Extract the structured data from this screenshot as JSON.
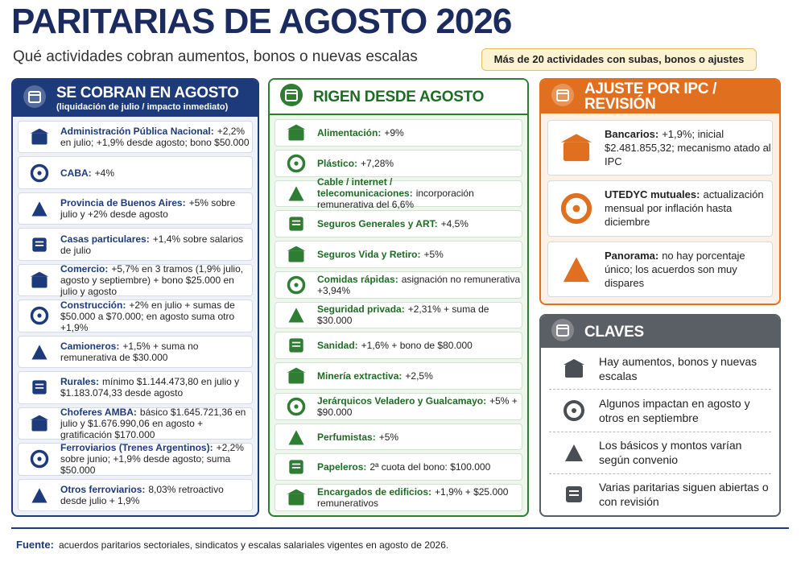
{
  "header": {
    "title": "PARITARIAS DE AGOSTO 2026",
    "subtitle": "Qué actividades cobran aumentos, bonos o nuevas escalas",
    "badge": "Más de 20 actividades con subas, bonos o ajustes"
  },
  "columns": [
    {
      "title": "SE COBRAN EN AGOSTO",
      "subtitle": "(liquidación de julio / impacto inmediato)",
      "items": [
        {
          "name": "Administración Pública Nacional:",
          "detail": "+2,2% en julio; +1,9% desde agosto; bono $50.000"
        },
        {
          "name": "CABA:",
          "detail": "+4%"
        },
        {
          "name": "Provincia de Buenos Aires:",
          "detail": "+5% sobre julio y +2% desde agosto"
        },
        {
          "name": "Casas particulares:",
          "detail": "+1,4% sobre salarios de julio"
        },
        {
          "name": "Comercio:",
          "detail": "+5,7% en 3 tramos (1,9% julio, agosto y septiembre) + bono $25.000 en julio y agosto"
        },
        {
          "name": "Construcción:",
          "detail": "+2% en julio + sumas de $50.000 a $70.000; en agosto suma otro +1,9%"
        },
        {
          "name": "Camioneros:",
          "detail": "+1,5% + suma no remunerativa de $30.000"
        },
        {
          "name": "Rurales:",
          "detail": "mínimo $1.144.473,80 en julio y $1.183.074,33 desde agosto"
        },
        {
          "name": "Choferes AMBA:",
          "detail": "básico $1.645.721,36 en julio y $1.676.990,06 en agosto + gratificación $170.000"
        },
        {
          "name": "Ferroviarios (Trenes Argentinos):",
          "detail": "+2,2% sobre junio; +1,9% desde agosto; suma $50.000"
        },
        {
          "name": "Otros ferroviarios:",
          "detail": "8,03% retroactivo desde julio + 1,9%"
        }
      ]
    },
    {
      "title": "RIGEN DESDE AGOSTO",
      "items": [
        {
          "name": "Alimentación:",
          "detail": "+9%"
        },
        {
          "name": "Plástico:",
          "detail": "+7,28%"
        },
        {
          "name": "Cable / internet / telecomunicaciones:",
          "detail": "incorporación remunerativa del 6,6%"
        },
        {
          "name": "Seguros Generales y ART:",
          "detail": "+4,5%"
        },
        {
          "name": "Seguros Vida y Retiro:",
          "detail": "+5%"
        },
        {
          "name": "Comidas rápidas:",
          "detail": "asignación no remunerativa +3,94%"
        },
        {
          "name": "Seguridad privada:",
          "detail": "+2,31% + suma de $30.000"
        },
        {
          "name": "Sanidad:",
          "detail": "+1,6% + bono de $80.000"
        },
        {
          "name": "Minería extractiva:",
          "detail": "+2,5%"
        },
        {
          "name": "Jerárquicos Veladero y Gualcamayo:",
          "detail": "+5% + $90.000"
        },
        {
          "name": "Perfumistas:",
          "detail": "+5%"
        },
        {
          "name": "Papeleros:",
          "detail": "2ª cuota del bono: $100.000"
        },
        {
          "name": "Encargados de edificios:",
          "detail": "+1,9% + $25.000 remunerativos"
        }
      ]
    },
    {
      "title": "AJUSTE POR IPC / REVISIÓN",
      "items": [
        {
          "name": "Bancarios:",
          "detail": "+1,9%; inicial $2.481.855,32; mecanismo atado al IPC"
        },
        {
          "name": "UTEDYC mutuales:",
          "detail": "actualización mensual por inflación hasta diciembre"
        },
        {
          "name": "Panorama:",
          "detail": "no hay porcentaje único; los acuerdos son muy dispares"
        }
      ]
    }
  ],
  "claves": {
    "title": "CLAVES",
    "items": [
      "Hay aumentos, bonos y nuevas escalas",
      "Algunos impactan en agosto y otros en septiembre",
      "Los básicos y montos varían según convenio",
      "Varias paritarias siguen abiertas o con revisión"
    ]
  },
  "footer": {
    "label": "Fuente:",
    "text": "acuerdos paritarios sectoriales, sindicatos y escalas salariales vigentes en agosto de 2026."
  }
}
